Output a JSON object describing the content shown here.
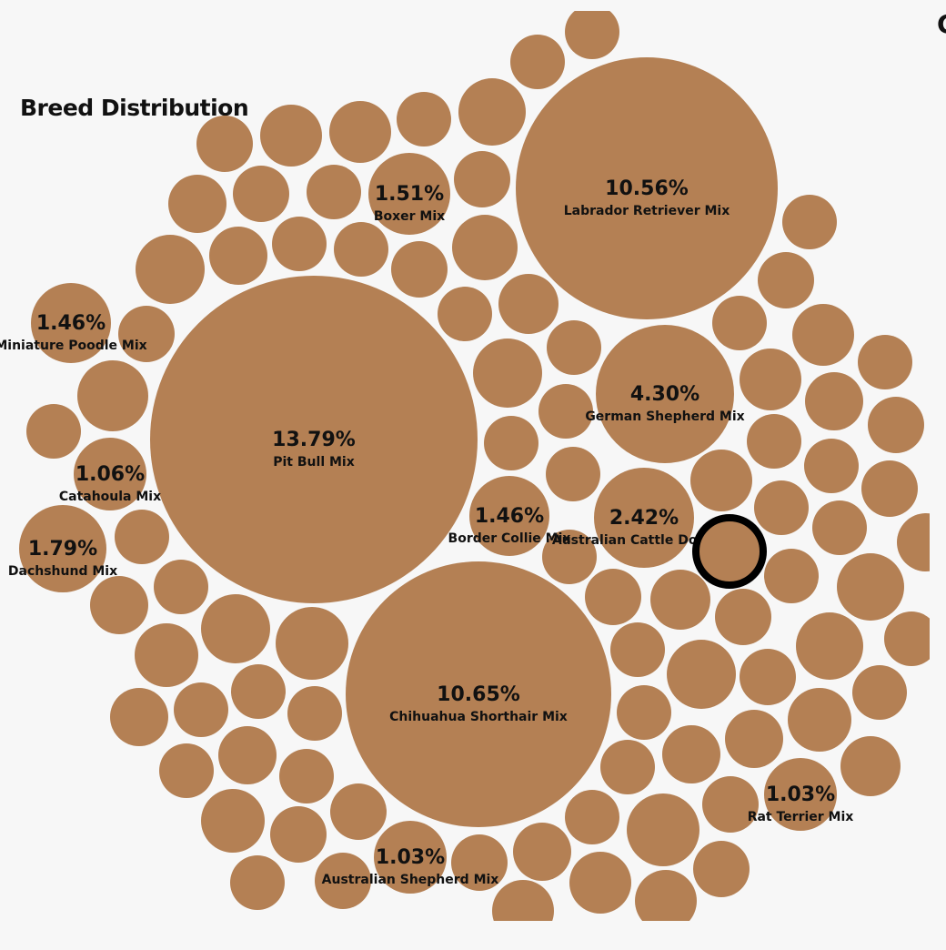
{
  "chart_data": {
    "type": "bubble",
    "title": "Breed Distribution",
    "unit": "%",
    "bubble_color": "#b48054",
    "highlight_color": "#000000",
    "labeled": [
      {
        "breed": "Pit Bull Mix",
        "value": 13.79
      },
      {
        "breed": "Chihuahua Shorthair Mix",
        "value": 10.65
      },
      {
        "breed": "Labrador Retriever Mix",
        "value": 10.56
      },
      {
        "breed": "German Shepherd Mix",
        "value": 4.3
      },
      {
        "breed": "Australian Cattle Dog Mix",
        "value": 2.42
      },
      {
        "breed": "Dachshund Mix",
        "value": 1.79
      },
      {
        "breed": "Boxer Mix",
        "value": 1.51
      },
      {
        "breed": "Miniature Poodle Mix",
        "value": 1.46
      },
      {
        "breed": "Border Collie Mix",
        "value": 1.46
      },
      {
        "breed": "Catahoula Mix",
        "value": 1.06
      },
      {
        "breed": "Australian Shepherd Mix",
        "value": 1.03
      },
      {
        "breed": "Rat Terrier Mix",
        "value": 1.03
      }
    ],
    "unlabeled_bubble_count": 123
  },
  "page": {
    "title": "Breed Distribution",
    "corner_glyph": "C"
  }
}
